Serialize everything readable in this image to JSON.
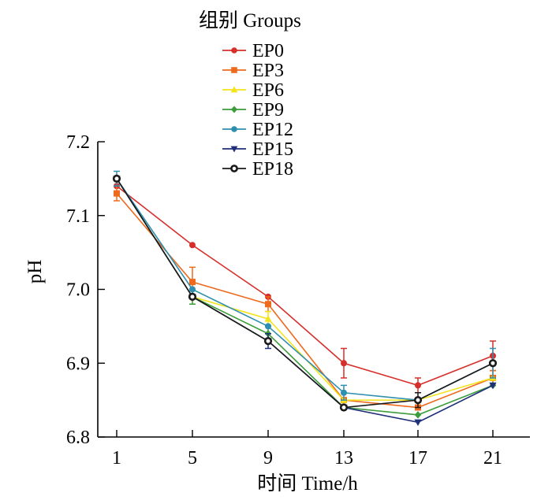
{
  "chart_data": {
    "type": "line",
    "title": "",
    "xlabel": "时间  Time/h",
    "ylabel": "pH",
    "x": [
      1,
      5,
      9,
      13,
      17,
      21
    ],
    "x_tick_labels": [
      "1",
      "5",
      "9",
      "13",
      "17",
      "21"
    ],
    "y_ticks": [
      6.8,
      6.9,
      7.0,
      7.1,
      7.2
    ],
    "y_tick_labels": [
      "6.8",
      "6.9",
      "7.0",
      "7.1",
      "7.2"
    ],
    "ylim": [
      6.8,
      7.2
    ],
    "grid": false,
    "legend": {
      "title": "组别 Groups",
      "placement": "top-center"
    },
    "series": [
      {
        "name": "EP0",
        "color": "#d62f2b",
        "marker": "circle",
        "values": [
          7.14,
          7.06,
          6.99,
          6.9,
          6.87,
          6.91
        ],
        "errors": [
          0.0,
          0.0,
          0.0,
          0.02,
          0.01,
          0.02
        ]
      },
      {
        "name": "EP3",
        "color": "#ee6a1d",
        "marker": "square",
        "values": [
          7.13,
          7.01,
          6.98,
          6.85,
          6.84,
          6.88
        ],
        "errors": [
          0.01,
          0.02,
          0.01,
          0.0,
          0.0,
          0.01
        ]
      },
      {
        "name": "EP6",
        "color": "#f2e31a",
        "marker": "triangle",
        "values": [
          7.15,
          6.99,
          6.96,
          6.85,
          6.85,
          6.88
        ],
        "errors": [
          0.0,
          0.01,
          0.01,
          0.0,
          0.0,
          0.0
        ]
      },
      {
        "name": "EP9",
        "color": "#3c9b3a",
        "marker": "diamond",
        "values": [
          7.15,
          6.99,
          6.94,
          6.84,
          6.83,
          6.87
        ],
        "errors": [
          0.0,
          0.01,
          0.01,
          0.0,
          0.0,
          0.0
        ]
      },
      {
        "name": "EP12",
        "color": "#2f8fb0",
        "marker": "circle",
        "values": [
          7.15,
          7.0,
          6.95,
          6.86,
          6.85,
          6.9
        ],
        "errors": [
          0.01,
          0.0,
          0.0,
          0.01,
          0.0,
          0.02
        ]
      },
      {
        "name": "EP15",
        "color": "#1f2f7a",
        "marker": "triangle-down",
        "values": [
          7.15,
          6.99,
          6.93,
          6.84,
          6.82,
          6.87
        ],
        "errors": [
          0.0,
          0.0,
          0.01,
          0.0,
          0.0,
          0.0
        ]
      },
      {
        "name": "EP18",
        "color": "#1a1a1a",
        "marker": "open-circle",
        "values": [
          7.15,
          6.99,
          6.93,
          6.84,
          6.85,
          6.9
        ],
        "errors": [
          0.0,
          0.0,
          0.0,
          0.0,
          0.01,
          0.0
        ]
      }
    ]
  }
}
